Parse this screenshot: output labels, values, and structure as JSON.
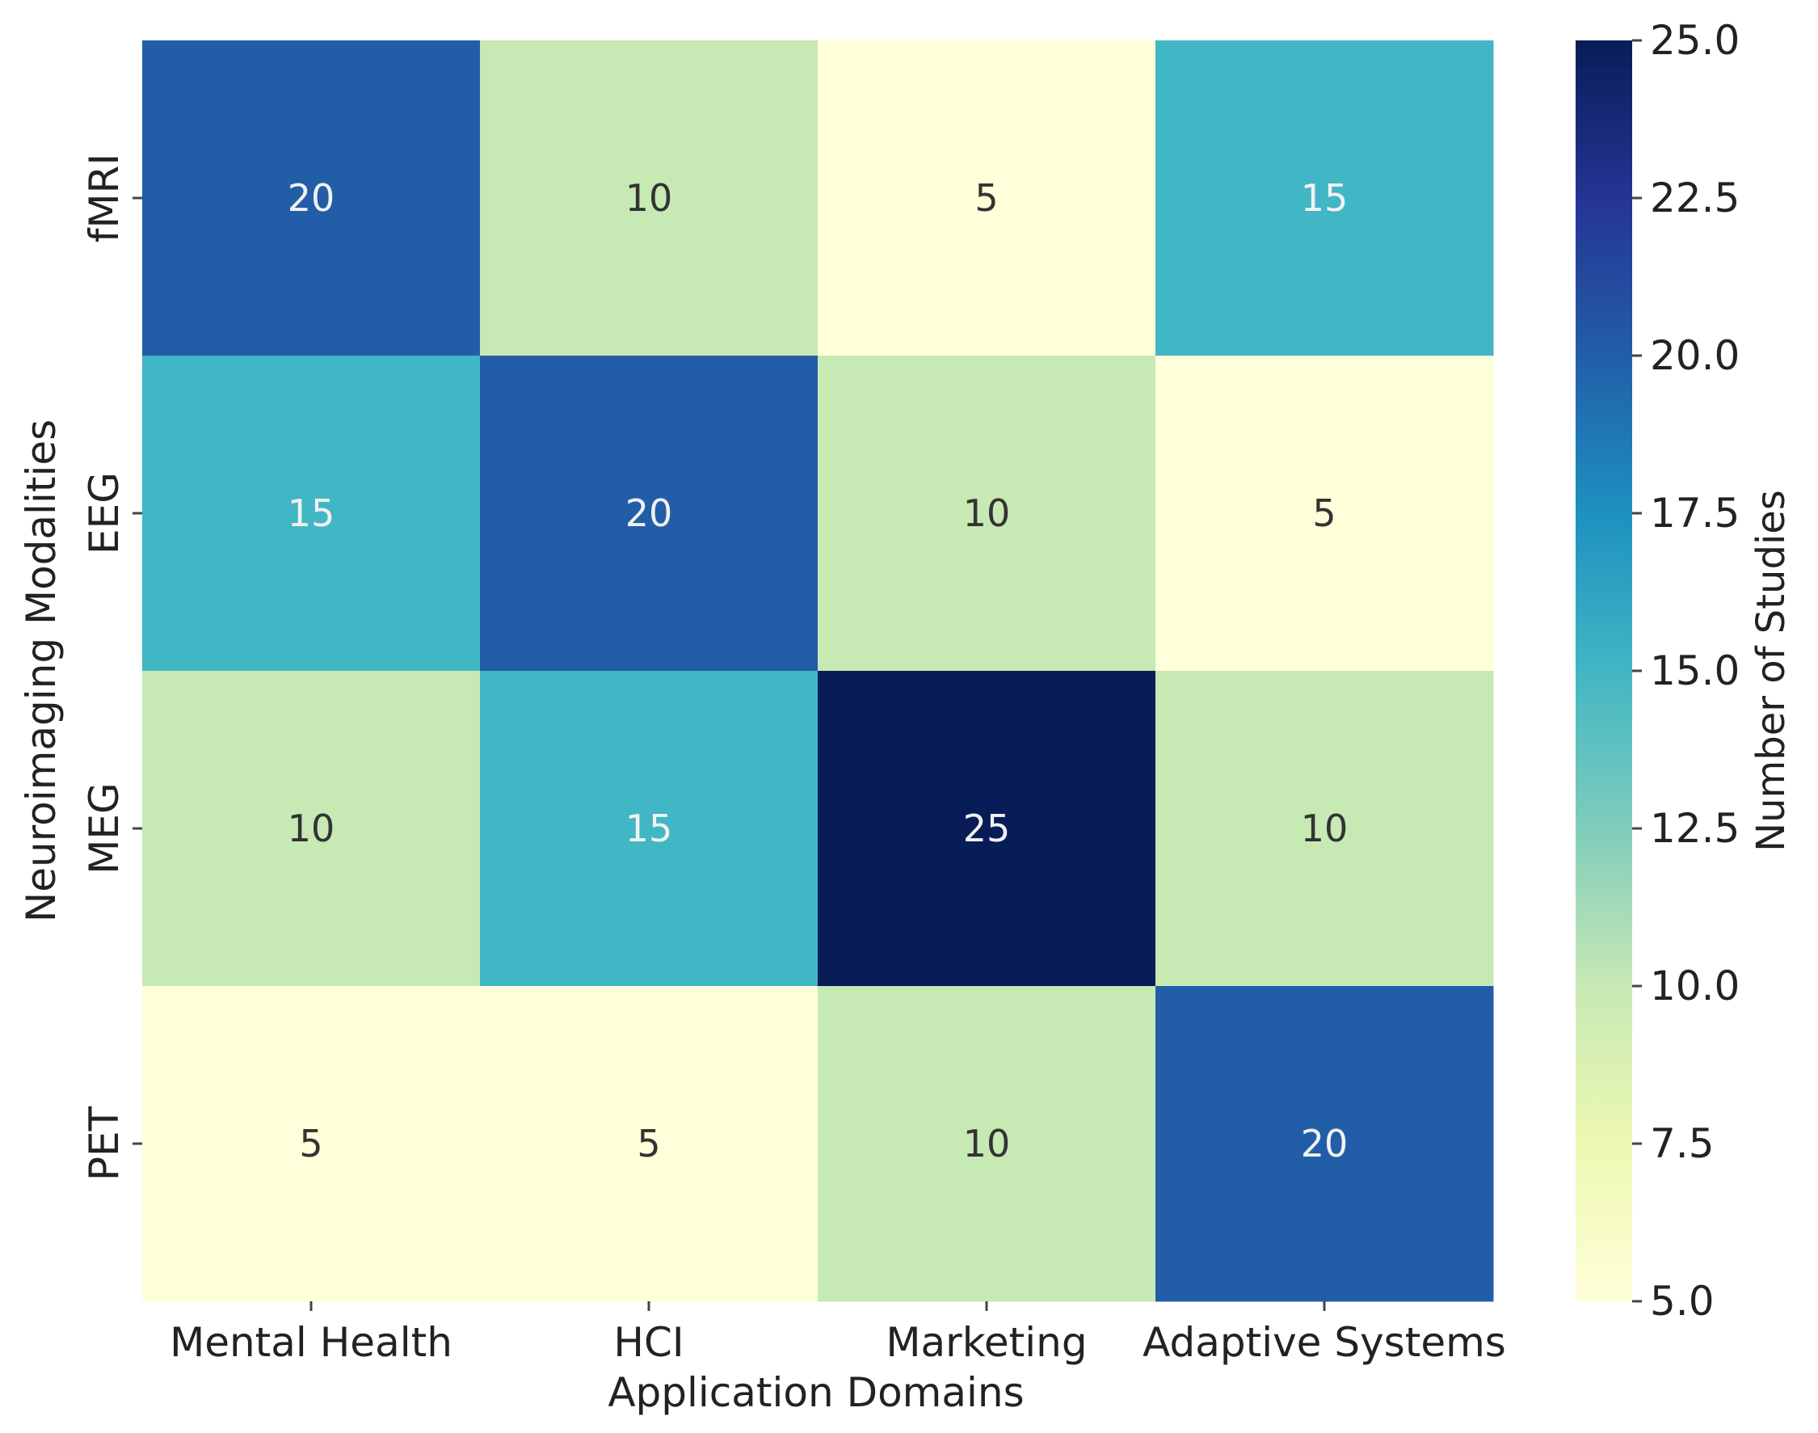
{
  "chart_data": {
    "type": "heatmap",
    "title": "",
    "xlabel": "Application Domains",
    "ylabel": "Neuroimaging Modalities",
    "x_categories": [
      "Mental Health",
      "HCI",
      "Marketing",
      "Adaptive Systems"
    ],
    "y_categories": [
      "fMRI",
      "EEG",
      "MEG",
      "PET"
    ],
    "values": [
      [
        20,
        10,
        5,
        15
      ],
      [
        15,
        20,
        10,
        5
      ],
      [
        10,
        15,
        25,
        10
      ],
      [
        5,
        5,
        10,
        20
      ]
    ],
    "cell_labels": [
      [
        "20",
        "10",
        "5",
        "15"
      ],
      [
        "15",
        "20",
        "10",
        "5"
      ],
      [
        "10",
        "15",
        "25",
        "10"
      ],
      [
        "5",
        "5",
        "10",
        "20"
      ]
    ],
    "colormap": "YlGnBu",
    "vmin": 5,
    "vmax": 25,
    "colorbar": {
      "label": "Number of Studies",
      "ticks": [
        5.0,
        7.5,
        10.0,
        12.5,
        15.0,
        17.5,
        20.0,
        22.5,
        25.0
      ],
      "tick_labels": [
        "5.0",
        "7.5",
        "10.0",
        "12.5",
        "15.0",
        "17.5",
        "20.0",
        "22.5",
        "25.0"
      ],
      "placement": "right"
    },
    "colors": {
      "dark_text": "#333333",
      "light_text": "#f2f2f2",
      "axis_text": "#222222",
      "stops": [
        "#ffffd9",
        "#edf8b1",
        "#c7e9b4",
        "#7fcdbb",
        "#41b6c4",
        "#1d91c0",
        "#225ea8",
        "#253494",
        "#081d58"
      ]
    }
  }
}
